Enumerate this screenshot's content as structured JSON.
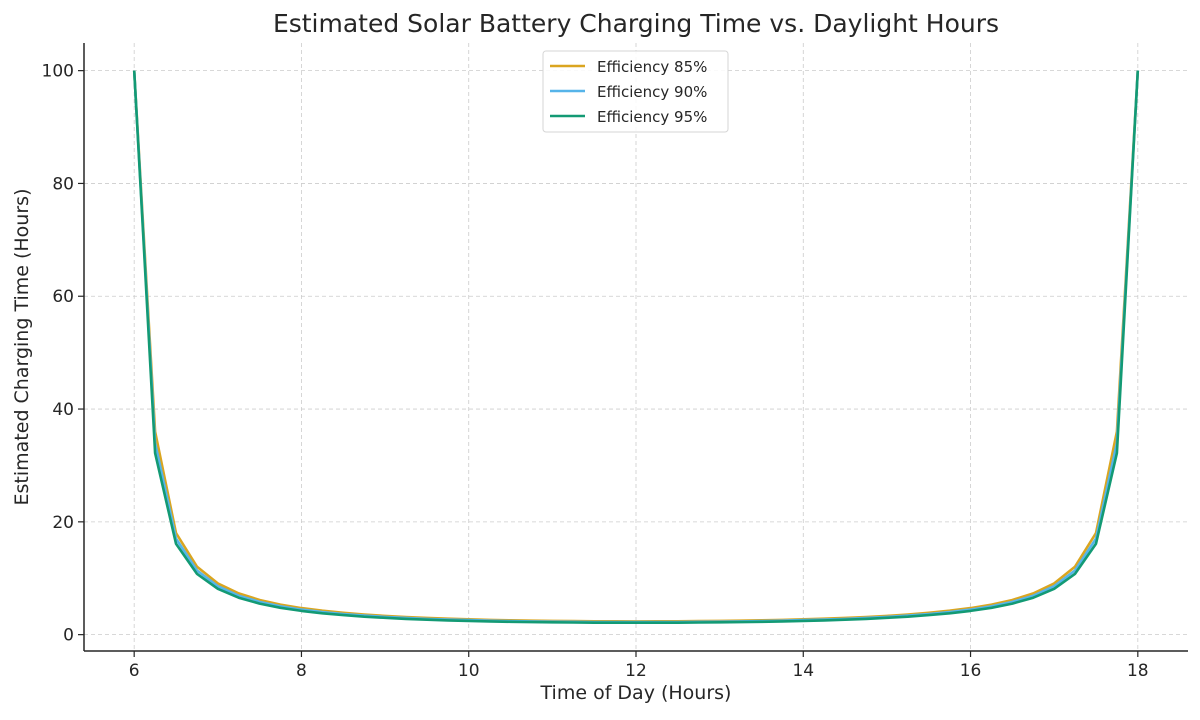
{
  "chart_data": {
    "type": "line",
    "title": "Estimated Solar Battery Charging Time vs. Daylight Hours",
    "xlabel": "Time of Day (Hours)",
    "ylabel": "Estimated Charging Time (Hours)",
    "xlim": [
      5.4,
      18.6
    ],
    "ylim": [
      -2.9,
      104.9
    ],
    "xticks": [
      6,
      8,
      10,
      12,
      14,
      16,
      18
    ],
    "yticks": [
      0,
      20,
      40,
      60,
      80,
      100
    ],
    "grid": true,
    "legend_position": "top-center",
    "x": [
      6,
      6.25,
      6.5,
      6.75,
      7,
      7.25,
      7.5,
      7.75,
      8,
      8.25,
      8.5,
      8.75,
      9,
      9.25,
      9.5,
      9.75,
      10,
      10.25,
      10.5,
      10.75,
      11,
      11.25,
      11.5,
      11.75,
      12,
      12.25,
      12.5,
      12.75,
      13,
      13.25,
      13.5,
      13.75,
      14,
      14.25,
      14.5,
      14.75,
      15,
      15.25,
      15.5,
      15.75,
      16,
      16.25,
      16.5,
      16.75,
      17,
      17.25,
      17.5,
      17.75,
      18
    ],
    "series": [
      {
        "name": "Efficiency 85%",
        "color": "#DAA520",
        "values": [
          100,
          35.98,
          18.03,
          12.06,
          9.09,
          7.32,
          6.15,
          5.32,
          4.71,
          4.24,
          3.87,
          3.57,
          3.33,
          3.13,
          2.97,
          2.83,
          2.72,
          2.62,
          2.55,
          2.48,
          2.44,
          2.4,
          2.37,
          2.36,
          2.35,
          2.36,
          2.37,
          2.4,
          2.44,
          2.48,
          2.55,
          2.62,
          2.72,
          2.83,
          2.97,
          3.13,
          3.33,
          3.57,
          3.87,
          4.24,
          4.71,
          5.32,
          6.15,
          7.32,
          9.09,
          12.06,
          18.03,
          35.98,
          100
        ]
      },
      {
        "name": "Efficiency 90%",
        "color": "#56B4E9",
        "values": [
          100,
          33.98,
          17.03,
          11.39,
          8.59,
          6.91,
          5.81,
          5.02,
          4.44,
          4.0,
          3.65,
          3.37,
          3.14,
          2.96,
          2.8,
          2.67,
          2.57,
          2.48,
          2.41,
          2.35,
          2.3,
          2.27,
          2.24,
          2.23,
          2.22,
          2.23,
          2.24,
          2.27,
          2.3,
          2.35,
          2.41,
          2.48,
          2.57,
          2.67,
          2.8,
          2.96,
          3.14,
          3.37,
          3.65,
          4.0,
          4.44,
          5.02,
          5.81,
          6.91,
          8.59,
          11.39,
          17.03,
          33.98,
          100
        ]
      },
      {
        "name": "Efficiency 95%",
        "color": "#139A74",
        "values": [
          100,
          32.19,
          16.13,
          10.79,
          8.13,
          6.55,
          5.5,
          4.76,
          4.21,
          3.79,
          3.46,
          3.19,
          2.98,
          2.8,
          2.65,
          2.53,
          2.43,
          2.35,
          2.28,
          2.22,
          2.18,
          2.15,
          2.12,
          2.11,
          2.11,
          2.11,
          2.12,
          2.15,
          2.18,
          2.22,
          2.28,
          2.35,
          2.43,
          2.53,
          2.65,
          2.8,
          2.98,
          3.19,
          3.46,
          3.79,
          4.21,
          4.76,
          5.5,
          6.55,
          8.13,
          10.79,
          16.13,
          32.19,
          100
        ]
      }
    ]
  }
}
